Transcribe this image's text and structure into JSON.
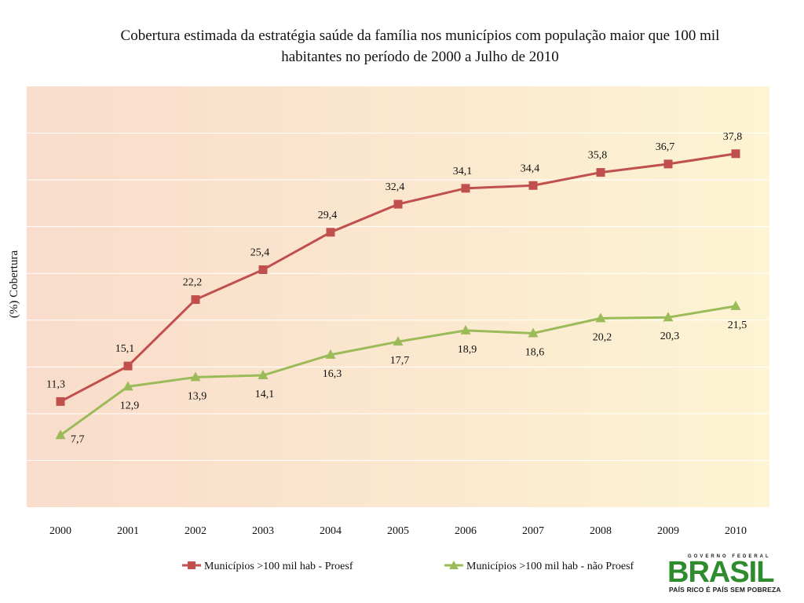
{
  "chart_data": {
    "type": "line",
    "title": "Cobertura estimada da estratégia saúde da família nos municípios com população maior que 100 mil habitantes no período de 2000 a Julho de 2010",
    "ylabel": "(%) Cobertura",
    "xlabel": "",
    "categories": [
      "2000",
      "2001",
      "2002",
      "2003",
      "2004",
      "2005",
      "2006",
      "2007",
      "2008",
      "2009",
      "2010"
    ],
    "ylim": [
      0,
      45
    ],
    "grid": true,
    "legend_position": "bottom",
    "series": [
      {
        "name": "Municípios >100 mil hab - Proesf",
        "color": "#c0504d",
        "marker": "square",
        "values": [
          11.3,
          15.1,
          22.2,
          25.4,
          29.4,
          32.4,
          34.1,
          34.4,
          35.8,
          36.7,
          37.8
        ],
        "labels": [
          "11,3",
          "15,1",
          "22,2",
          "25,4",
          "29,4",
          "32,4",
          "34,1",
          "34,4",
          "35,8",
          "36,7",
          "37,8"
        ]
      },
      {
        "name": "Municípios >100 mil hab - não Proesf",
        "color": "#9bbb59",
        "marker": "triangle",
        "values": [
          7.7,
          12.9,
          13.9,
          14.1,
          16.3,
          17.7,
          18.9,
          18.6,
          20.2,
          20.3,
          21.5
        ],
        "labels": [
          "7,7",
          "12,9",
          "13,9",
          "14,1",
          "16,3",
          "17,7",
          "18,9",
          "18,6",
          "20,2",
          "20,3",
          "21,5"
        ]
      }
    ]
  },
  "logo": {
    "top_text": "GOVERNO FEDERAL",
    "main_text": "BRASIL",
    "bottom_text": "PAÍS RICO É PAÍS SEM POBREZA"
  }
}
